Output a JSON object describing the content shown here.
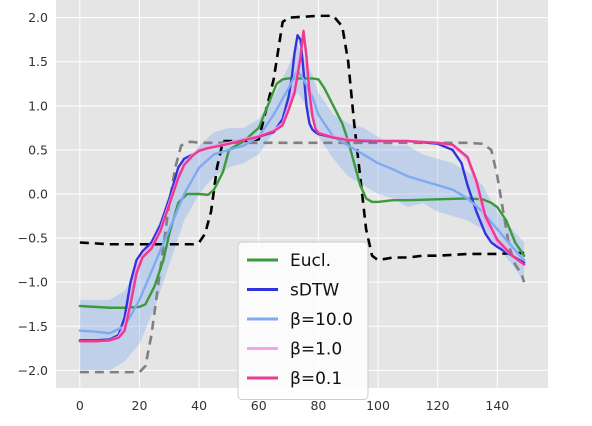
{
  "chart_data": {
    "type": "line",
    "title": "",
    "xlabel": "",
    "ylabel": "",
    "xlim": [
      -8,
      157
    ],
    "ylim": [
      -2.2,
      2.2
    ],
    "xticks": [
      0,
      20,
      40,
      60,
      80,
      100,
      120,
      140
    ],
    "yticks": [
      -2.0,
      -1.5,
      -1.0,
      -0.5,
      0.0,
      0.5,
      1.0,
      1.5,
      2.0
    ],
    "xtick_labels": [
      "0",
      "20",
      "40",
      "60",
      "80",
      "100",
      "120",
      "140"
    ],
    "ytick_labels": [
      "−2.0",
      "−1.5",
      "−1.0",
      "−0.5",
      "0.0",
      "0.5",
      "1.0",
      "1.5",
      "2.0"
    ],
    "grid": true,
    "background": "#e5e5e5",
    "legend_position": "bottom-center",
    "series": [
      {
        "name": "",
        "color": "#000000",
        "style": "dashed",
        "x": [
          0,
          5,
          10,
          15,
          20,
          25,
          30,
          35,
          38,
          40,
          42,
          44,
          46,
          48,
          50,
          55,
          60,
          65,
          68,
          70,
          75,
          80,
          85,
          88,
          90,
          92,
          94,
          96,
          98,
          100,
          105,
          110,
          115,
          120,
          125,
          130,
          135,
          140,
          145,
          149
        ],
        "y": [
          -0.55,
          -0.56,
          -0.57,
          -0.57,
          -0.57,
          -0.57,
          -0.57,
          -0.57,
          -0.57,
          -0.55,
          -0.45,
          -0.2,
          0.3,
          0.6,
          0.6,
          0.6,
          0.62,
          1.3,
          1.95,
          2.0,
          2.01,
          2.02,
          2.02,
          1.9,
          1.5,
          0.8,
          0.2,
          -0.4,
          -0.7,
          -0.75,
          -0.72,
          -0.72,
          -0.7,
          -0.7,
          -0.69,
          -0.68,
          -0.68,
          -0.68,
          -0.67,
          -0.67
        ]
      },
      {
        "name": "",
        "color": "#808080",
        "style": "dashed",
        "x": [
          0,
          5,
          10,
          15,
          20,
          22,
          24,
          26,
          28,
          30,
          32,
          34,
          36,
          38,
          40,
          50,
          60,
          70,
          80,
          90,
          100,
          110,
          120,
          125,
          130,
          135,
          138,
          140,
          142,
          144,
          146,
          148,
          149
        ],
        "y": [
          -2.02,
          -2.02,
          -2.02,
          -2.02,
          -2.02,
          -1.95,
          -1.6,
          -1.1,
          -0.6,
          -0.1,
          0.3,
          0.55,
          0.59,
          0.59,
          0.58,
          0.58,
          0.58,
          0.58,
          0.58,
          0.58,
          0.58,
          0.58,
          0.58,
          0.58,
          0.58,
          0.57,
          0.5,
          0.2,
          -0.2,
          -0.6,
          -0.8,
          -0.9,
          -1.0
        ]
      },
      {
        "name": "Eucl.",
        "color": "#3b9a3b",
        "style": "solid",
        "x": [
          0,
          5,
          10,
          15,
          20,
          22,
          25,
          28,
          30,
          33,
          36,
          40,
          43,
          45,
          48,
          50,
          55,
          60,
          63,
          66,
          68,
          70,
          72,
          75,
          78,
          80,
          82,
          85,
          88,
          90,
          92,
          94,
          96,
          98,
          100,
          105,
          110,
          120,
          130,
          135,
          138,
          140,
          143,
          146,
          149
        ],
        "y": [
          -1.27,
          -1.28,
          -1.29,
          -1.29,
          -1.28,
          -1.25,
          -1.05,
          -0.75,
          -0.45,
          -0.1,
          0.0,
          0.0,
          -0.01,
          0.05,
          0.25,
          0.5,
          0.6,
          0.75,
          1.0,
          1.25,
          1.3,
          1.31,
          1.31,
          1.31,
          1.31,
          1.3,
          1.2,
          1.0,
          0.8,
          0.6,
          0.35,
          0.1,
          -0.05,
          -0.09,
          -0.09,
          -0.07,
          -0.07,
          -0.06,
          -0.05,
          -0.06,
          -0.1,
          -0.15,
          -0.3,
          -0.55,
          -0.7
        ]
      },
      {
        "name": "sDTW",
        "color": "#3333dd",
        "style": "solid",
        "x": [
          0,
          5,
          10,
          13,
          15,
          17,
          19,
          21,
          24,
          27,
          30,
          33,
          35,
          38,
          40,
          43,
          46,
          50,
          55,
          60,
          65,
          68,
          70,
          71,
          72,
          73,
          74,
          75,
          76,
          77,
          78,
          79,
          80,
          85,
          90,
          95,
          100,
          110,
          120,
          125,
          128,
          130,
          133,
          136,
          138,
          140,
          145,
          149
        ],
        "y": [
          -1.66,
          -1.66,
          -1.65,
          -1.6,
          -1.4,
          -1.0,
          -0.75,
          -0.65,
          -0.55,
          -0.35,
          -0.05,
          0.3,
          0.4,
          0.45,
          0.5,
          0.52,
          0.55,
          0.58,
          0.62,
          0.65,
          0.7,
          0.85,
          1.1,
          1.3,
          1.6,
          1.8,
          1.75,
          1.4,
          1.0,
          0.8,
          0.73,
          0.7,
          0.68,
          0.64,
          0.62,
          0.6,
          0.6,
          0.6,
          0.57,
          0.5,
          0.35,
          0.1,
          -0.2,
          -0.45,
          -0.55,
          -0.6,
          -0.7,
          -0.78
        ]
      },
      {
        "name": "β=10.0",
        "color": "#7faaf2",
        "style": "solid",
        "band": true,
        "x": [
          0,
          5,
          10,
          15,
          20,
          25,
          30,
          35,
          40,
          45,
          50,
          55,
          60,
          65,
          70,
          73,
          75,
          78,
          80,
          85,
          90,
          95,
          100,
          105,
          110,
          115,
          120,
          125,
          130,
          135,
          140,
          145,
          149
        ],
        "y": [
          -1.55,
          -1.56,
          -1.58,
          -1.5,
          -1.2,
          -0.8,
          -0.4,
          0.0,
          0.3,
          0.45,
          0.5,
          0.55,
          0.65,
          0.9,
          1.2,
          1.4,
          1.3,
          1.1,
          0.9,
          0.65,
          0.55,
          0.45,
          0.35,
          0.28,
          0.2,
          0.15,
          0.1,
          0.05,
          -0.05,
          -0.2,
          -0.4,
          -0.6,
          -0.75
        ],
        "y_lower": [
          -2.0,
          -2.0,
          -2.0,
          -1.9,
          -1.7,
          -1.3,
          -0.8,
          -0.3,
          0.0,
          0.2,
          0.3,
          0.35,
          0.45,
          0.7,
          1.0,
          1.15,
          1.05,
          0.85,
          0.65,
          0.4,
          0.2,
          0.1,
          0.0,
          -0.05,
          -0.15,
          -0.1,
          -0.2,
          -0.25,
          -0.3,
          -0.4,
          -0.6,
          -0.8,
          -1.0
        ],
        "y_upper": [
          -1.2,
          -1.2,
          -1.2,
          -1.1,
          -0.8,
          -0.45,
          -0.05,
          0.3,
          0.55,
          0.7,
          0.75,
          0.75,
          0.85,
          1.1,
          1.45,
          1.7,
          1.55,
          1.35,
          1.15,
          0.9,
          0.8,
          0.75,
          0.65,
          0.55,
          0.55,
          0.45,
          0.4,
          0.35,
          0.25,
          0.1,
          -0.2,
          -0.4,
          -0.55
        ]
      },
      {
        "name": "β=1.0",
        "color": "#f49ef4",
        "style": "solid",
        "x": [
          0,
          5,
          10,
          13,
          15,
          17,
          19,
          21,
          24,
          27,
          30,
          33,
          35,
          38,
          40,
          43,
          46,
          50,
          55,
          60,
          65,
          68,
          70,
          72,
          74,
          75,
          76,
          77,
          78,
          79,
          80,
          82,
          85,
          90,
          100,
          110,
          120,
          125,
          130,
          133,
          136,
          140,
          145,
          149
        ],
        "y": [
          -1.67,
          -1.67,
          -1.66,
          -1.62,
          -1.5,
          -1.2,
          -0.85,
          -0.7,
          -0.6,
          -0.4,
          -0.1,
          0.2,
          0.35,
          0.45,
          0.5,
          0.53,
          0.55,
          0.58,
          0.62,
          0.66,
          0.72,
          0.8,
          1.0,
          1.2,
          1.6,
          1.82,
          1.6,
          1.2,
          0.9,
          0.75,
          0.7,
          0.68,
          0.65,
          0.62,
          0.6,
          0.6,
          0.58,
          0.55,
          0.4,
          0.1,
          -0.3,
          -0.55,
          -0.7,
          -0.8
        ]
      },
      {
        "name": "β=0.1",
        "color": "#ee3a8c",
        "style": "solid",
        "x": [
          0,
          5,
          10,
          13,
          15,
          17,
          19,
          21,
          24,
          27,
          30,
          33,
          35,
          38,
          40,
          43,
          46,
          50,
          55,
          60,
          65,
          68,
          70,
          72,
          74,
          75,
          76,
          77,
          78,
          79,
          80,
          82,
          85,
          90,
          100,
          110,
          120,
          125,
          130,
          133,
          136,
          140,
          145,
          149
        ],
        "y": [
          -1.67,
          -1.67,
          -1.66,
          -1.63,
          -1.55,
          -1.25,
          -0.9,
          -0.72,
          -0.62,
          -0.42,
          -0.12,
          0.18,
          0.33,
          0.44,
          0.49,
          0.52,
          0.54,
          0.57,
          0.61,
          0.65,
          0.71,
          0.78,
          0.95,
          1.15,
          1.55,
          1.85,
          1.55,
          1.15,
          0.88,
          0.74,
          0.69,
          0.67,
          0.64,
          0.61,
          0.6,
          0.6,
          0.58,
          0.56,
          0.42,
          0.15,
          -0.25,
          -0.52,
          -0.7,
          -0.8
        ]
      }
    ]
  }
}
